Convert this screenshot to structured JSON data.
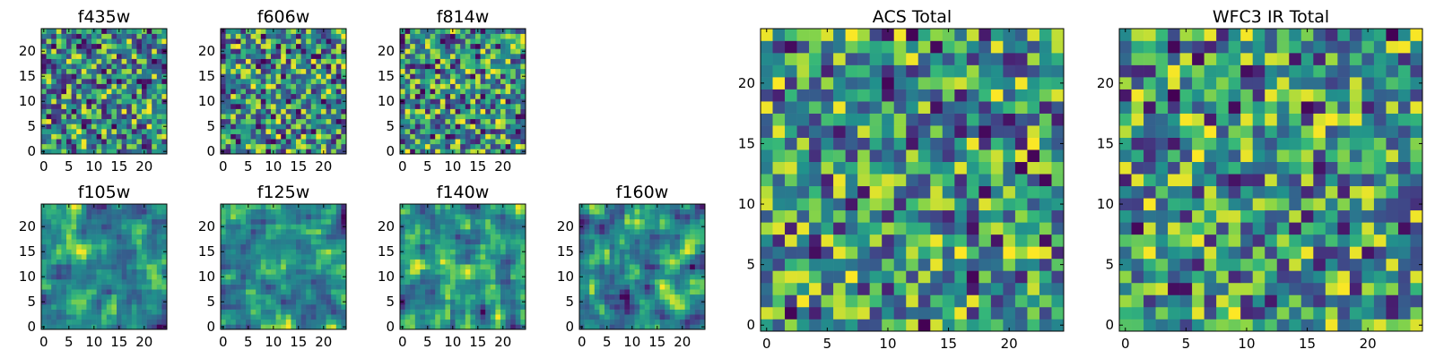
{
  "chart_data": [
    {
      "type": "heatmap",
      "title": "f435w",
      "grid_size": 25,
      "colormap": "viridis",
      "pattern": "fine-noise",
      "seed": 11,
      "xticks": [
        "0",
        "5",
        "10",
        "15",
        "20"
      ],
      "yticks": [
        "0",
        "5",
        "10",
        "15",
        "20"
      ]
    },
    {
      "type": "heatmap",
      "title": "f606w",
      "grid_size": 25,
      "colormap": "viridis",
      "pattern": "fine-noise",
      "seed": 23,
      "xticks": [
        "0",
        "5",
        "10",
        "15",
        "20"
      ],
      "yticks": [
        "0",
        "5",
        "10",
        "15",
        "20"
      ]
    },
    {
      "type": "heatmap",
      "title": "f814w",
      "grid_size": 25,
      "colormap": "viridis",
      "pattern": "fine-noise",
      "seed": 37,
      "xticks": [
        "0",
        "5",
        "10",
        "15",
        "20"
      ],
      "yticks": [
        "0",
        "5",
        "10",
        "15",
        "20"
      ]
    },
    {
      "type": "heatmap",
      "title": "f105w",
      "grid_size": 25,
      "colormap": "viridis",
      "pattern": "smooth-noise",
      "seed": 41,
      "xticks": [
        "0",
        "5",
        "10",
        "15",
        "20"
      ],
      "yticks": [
        "0",
        "5",
        "10",
        "15",
        "20"
      ]
    },
    {
      "type": "heatmap",
      "title": "f125w",
      "grid_size": 25,
      "colormap": "viridis",
      "pattern": "smooth-noise",
      "seed": 53,
      "xticks": [
        "0",
        "5",
        "10",
        "15",
        "20"
      ],
      "yticks": [
        "0",
        "5",
        "10",
        "15",
        "20"
      ]
    },
    {
      "type": "heatmap",
      "title": "f140w",
      "grid_size": 25,
      "colormap": "viridis",
      "pattern": "smooth-noise",
      "seed": 67,
      "xticks": [
        "0",
        "5",
        "10",
        "15",
        "20"
      ],
      "yticks": [
        "0",
        "5",
        "10",
        "15",
        "20"
      ]
    },
    {
      "type": "heatmap",
      "title": "f160w",
      "grid_size": 25,
      "colormap": "viridis",
      "pattern": "smooth-noise",
      "seed": 79,
      "xticks": [
        "0",
        "5",
        "10",
        "15",
        "20"
      ],
      "yticks": [
        "0",
        "5",
        "10",
        "15",
        "20"
      ]
    },
    {
      "type": "heatmap",
      "title": "ACS Total",
      "grid_size": 25,
      "colormap": "viridis",
      "pattern": "blocky-noise",
      "seed": 97,
      "xticks": [
        "0",
        "5",
        "10",
        "15",
        "20"
      ],
      "yticks": [
        "0",
        "5",
        "10",
        "15",
        "20"
      ]
    },
    {
      "type": "heatmap",
      "title": "WFC3 IR Total",
      "grid_size": 25,
      "colormap": "viridis",
      "pattern": "blocky-noise",
      "seed": 113,
      "xticks": [
        "0",
        "5",
        "10",
        "15",
        "20"
      ],
      "yticks": [
        "0",
        "5",
        "10",
        "15",
        "20"
      ]
    }
  ]
}
